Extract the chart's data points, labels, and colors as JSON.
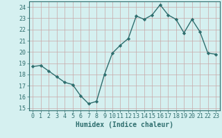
{
  "x": [
    0,
    1,
    2,
    3,
    4,
    5,
    6,
    7,
    8,
    9,
    10,
    11,
    12,
    13,
    14,
    15,
    16,
    17,
    18,
    19,
    20,
    21,
    22,
    23
  ],
  "y": [
    18.7,
    18.8,
    18.3,
    17.8,
    17.3,
    17.1,
    16.1,
    15.4,
    15.6,
    18.0,
    19.9,
    20.6,
    21.2,
    23.2,
    22.9,
    23.3,
    24.2,
    23.3,
    22.9,
    21.7,
    22.9,
    21.8,
    19.9,
    19.8
  ],
  "line_color": "#2e6e6e",
  "bg_color": "#d5f0f0",
  "grid_color_major": "#c8a8a8",
  "grid_color_minor": "#c8a8a8",
  "xlabel": "Humidex (Indice chaleur)",
  "yticks": [
    15,
    16,
    17,
    18,
    19,
    20,
    21,
    22,
    23,
    24
  ],
  "ylim": [
    14.8,
    24.5
  ],
  "xlim": [
    -0.5,
    23.5
  ],
  "tick_fontsize": 6.0,
  "xlabel_fontsize": 7.0
}
